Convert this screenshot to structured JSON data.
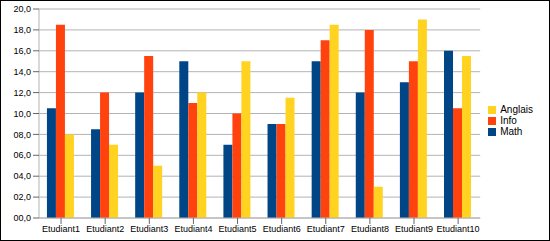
{
  "chart_data": {
    "type": "bar",
    "categories": [
      "Etudiant1",
      "Etudiant2",
      "Etudiant3",
      "Etudiant4",
      "Etudiant5",
      "Etudiant6",
      "Etudiant7",
      "Etudiant8",
      "Etudiant9",
      "Etudiant10"
    ],
    "series": [
      {
        "name": "Math",
        "color": "#004586",
        "values": [
          10.5,
          8.5,
          12,
          15,
          7,
          9,
          15,
          12,
          13,
          16
        ]
      },
      {
        "name": "Info",
        "color": "#ff420e",
        "values": [
          18.5,
          12,
          15.5,
          11,
          10,
          9,
          17,
          18,
          15,
          10.5
        ]
      },
      {
        "name": "Anglais",
        "color": "#ffd320",
        "values": [
          8,
          7,
          5,
          12,
          15,
          11.5,
          18.5,
          3,
          19,
          15.5
        ]
      }
    ],
    "ylim": [
      0,
      20
    ],
    "yticks": [
      {
        "value": 0,
        "label": "00,0"
      },
      {
        "value": 2,
        "label": "02,0"
      },
      {
        "value": 4,
        "label": "04,0"
      },
      {
        "value": 6,
        "label": "06,0"
      },
      {
        "value": 8,
        "label": "08,0"
      },
      {
        "value": 10,
        "label": "10,0"
      },
      {
        "value": 12,
        "label": "12,0"
      },
      {
        "value": 14,
        "label": "14,0"
      },
      {
        "value": 16,
        "label": "16,0"
      },
      {
        "value": 18,
        "label": "18,0"
      },
      {
        "value": 20,
        "label": "20,0"
      }
    ],
    "grid": true,
    "legend": "right"
  }
}
